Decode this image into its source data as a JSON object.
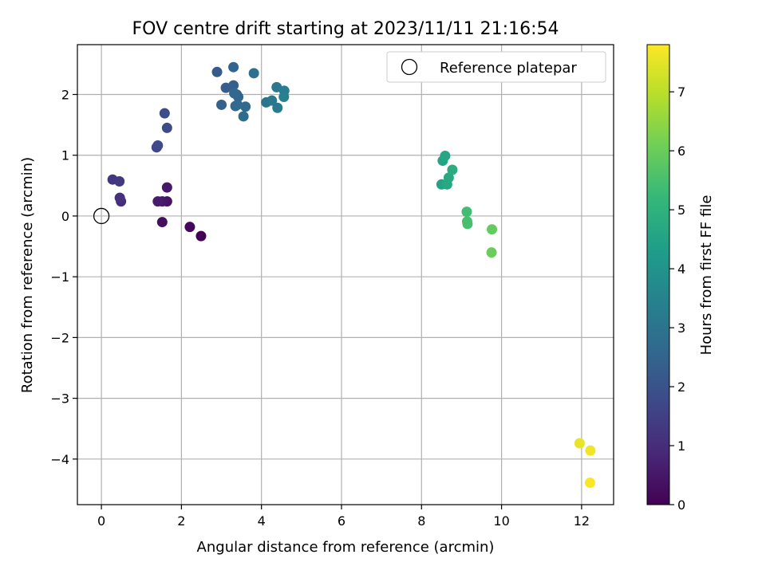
{
  "chart_data": {
    "type": "scatter",
    "title": "FOV centre drift starting at 2023/11/11 21:16:54",
    "xlabel": "Angular distance from reference (arcmin)",
    "ylabel": "Rotation from reference (arcmin)",
    "xlim": [
      -0.6,
      12.8
    ],
    "ylim": [
      -4.75,
      2.82
    ],
    "xticks": [
      0,
      2,
      4,
      6,
      8,
      10,
      12
    ],
    "yticks": [
      -4,
      -3,
      -2,
      -1,
      0,
      1,
      2
    ],
    "grid": true,
    "legend": {
      "placement": "top-right",
      "entries": [
        "Reference platepar"
      ]
    },
    "reference_point": {
      "x": 0,
      "y": 0
    },
    "colorbar": {
      "label": "Hours from first FF file",
      "colormap": "viridis",
      "range": [
        0,
        7.8
      ],
      "ticks": [
        0,
        1,
        2,
        3,
        4,
        5,
        6,
        7
      ]
    },
    "points": [
      {
        "x": 2.49,
        "y": -0.33,
        "c": 0.0
      },
      {
        "x": 2.21,
        "y": -0.18,
        "c": 0.15
      },
      {
        "x": 1.52,
        "y": -0.1,
        "c": 0.3
      },
      {
        "x": 1.64,
        "y": 0.24,
        "c": 0.4
      },
      {
        "x": 1.52,
        "y": 0.24,
        "c": 0.5
      },
      {
        "x": 1.41,
        "y": 0.24,
        "c": 0.6
      },
      {
        "x": 1.64,
        "y": 0.47,
        "c": 0.5
      },
      {
        "x": 0.49,
        "y": 0.24,
        "c": 1.0
      },
      {
        "x": 0.46,
        "y": 0.3,
        "c": 1.1
      },
      {
        "x": 0.28,
        "y": 0.6,
        "c": 1.2
      },
      {
        "x": 0.45,
        "y": 0.57,
        "c": 1.3
      },
      {
        "x": 1.38,
        "y": 1.13,
        "c": 1.7
      },
      {
        "x": 1.41,
        "y": 1.16,
        "c": 1.75
      },
      {
        "x": 1.64,
        "y": 1.45,
        "c": 1.8
      },
      {
        "x": 1.58,
        "y": 1.69,
        "c": 1.85
      },
      {
        "x": 2.89,
        "y": 2.37,
        "c": 2.2
      },
      {
        "x": 3.11,
        "y": 2.11,
        "c": 2.3
      },
      {
        "x": 3.3,
        "y": 2.15,
        "c": 2.35
      },
      {
        "x": 3.0,
        "y": 1.83,
        "c": 2.4
      },
      {
        "x": 3.3,
        "y": 2.45,
        "c": 2.5
      },
      {
        "x": 3.38,
        "y": 2.0,
        "c": 2.5
      },
      {
        "x": 3.42,
        "y": 1.96,
        "c": 2.55
      },
      {
        "x": 3.32,
        "y": 2.02,
        "c": 2.6
      },
      {
        "x": 3.4,
        "y": 1.83,
        "c": 2.6
      },
      {
        "x": 3.35,
        "y": 1.81,
        "c": 2.65
      },
      {
        "x": 3.6,
        "y": 1.8,
        "c": 2.7
      },
      {
        "x": 3.55,
        "y": 1.64,
        "c": 2.75
      },
      {
        "x": 3.81,
        "y": 2.35,
        "c": 2.9
      },
      {
        "x": 4.12,
        "y": 1.87,
        "c": 3.0
      },
      {
        "x": 4.26,
        "y": 1.9,
        "c": 3.1
      },
      {
        "x": 4.38,
        "y": 2.12,
        "c": 3.15
      },
      {
        "x": 4.4,
        "y": 1.78,
        "c": 3.2
      },
      {
        "x": 4.57,
        "y": 2.06,
        "c": 3.3
      },
      {
        "x": 4.56,
        "y": 1.96,
        "c": 3.4
      },
      {
        "x": 8.5,
        "y": 0.52,
        "c": 4.5
      },
      {
        "x": 8.53,
        "y": 0.91,
        "c": 4.55
      },
      {
        "x": 8.59,
        "y": 0.99,
        "c": 4.6
      },
      {
        "x": 8.64,
        "y": 0.52,
        "c": 4.65
      },
      {
        "x": 8.68,
        "y": 0.63,
        "c": 4.7
      },
      {
        "x": 8.77,
        "y": 0.76,
        "c": 4.8
      },
      {
        "x": 9.13,
        "y": 0.07,
        "c": 5.4
      },
      {
        "x": 9.14,
        "y": -0.09,
        "c": 5.5
      },
      {
        "x": 9.15,
        "y": -0.13,
        "c": 5.5
      },
      {
        "x": 9.76,
        "y": -0.22,
        "c": 5.9
      },
      {
        "x": 9.75,
        "y": -0.6,
        "c": 6.0
      },
      {
        "x": 11.95,
        "y": -3.74,
        "c": 7.55
      },
      {
        "x": 12.22,
        "y": -3.86,
        "c": 7.65
      },
      {
        "x": 12.21,
        "y": -4.39,
        "c": 7.75
      }
    ]
  }
}
